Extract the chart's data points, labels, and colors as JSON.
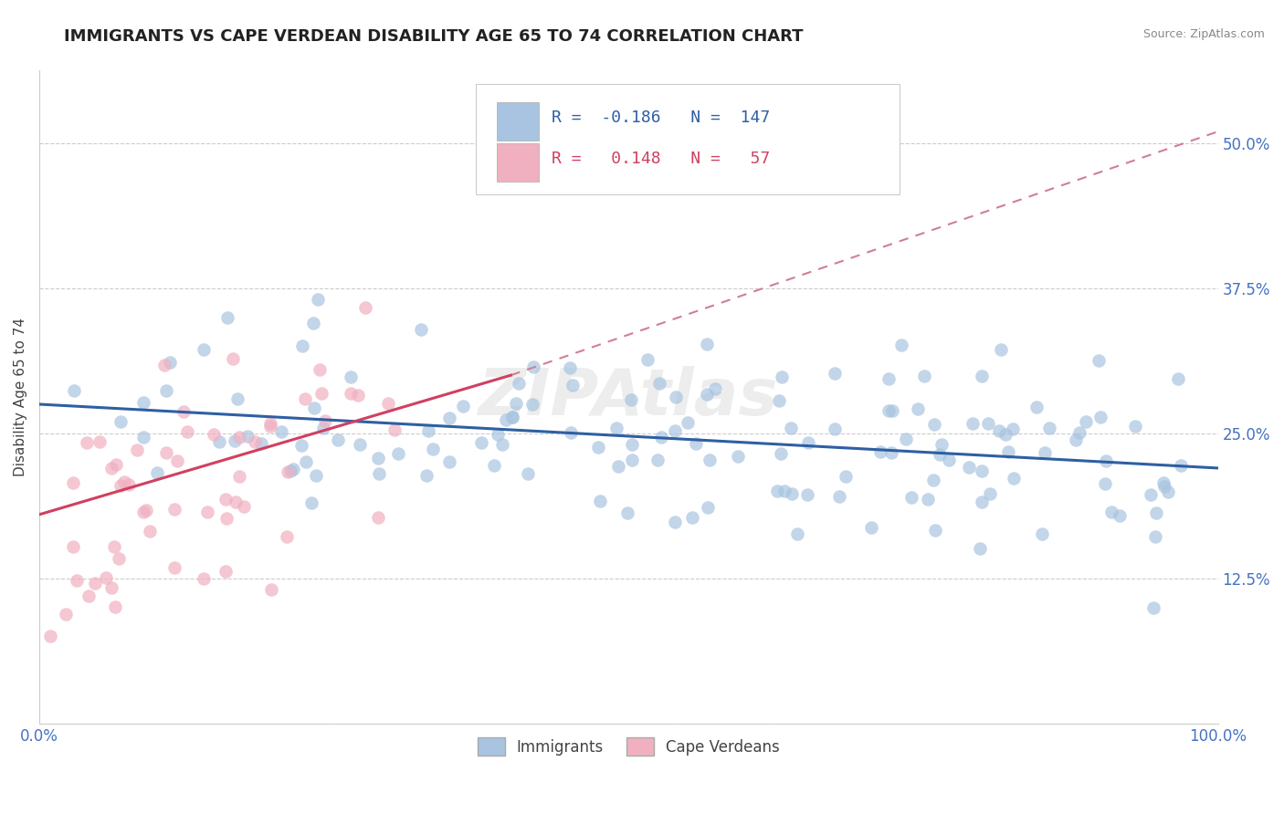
{
  "title": "IMMIGRANTS VS CAPE VERDEAN DISABILITY AGE 65 TO 74 CORRELATION CHART",
  "source_text": "Source: ZipAtlas.com",
  "ylabel": "Disability Age 65 to 74",
  "xlim": [
    0,
    100
  ],
  "ylim": [
    0,
    56.25
  ],
  "ytick_vals": [
    0,
    12.5,
    25.0,
    37.5,
    50.0
  ],
  "right_ytick_labels": [
    "",
    "12.5%",
    "25.0%",
    "37.5%",
    "50.0%"
  ],
  "xtick_vals": [
    0,
    100
  ],
  "xtick_labels": [
    "0.0%",
    "100.0%"
  ],
  "immigrants_color": "#a8c4e0",
  "capeverdean_color": "#f0b0c0",
  "trend_immigrants_color": "#2e5fa3",
  "trend_capeverdean_color": "#d04060",
  "dashed_extension_color": "#d08090",
  "watermark_text": "ZIPAtlas",
  "title_color": "#222222",
  "title_fontsize": 13,
  "axis_label_color": "#444444",
  "tick_label_color": "#4472c4",
  "background_color": "#ffffff",
  "grid_color": "#cccccc",
  "imm_trend_y0": 27.5,
  "imm_trend_y1": 22.0,
  "cv_trend_x0": 0,
  "cv_trend_x1": 40,
  "cv_trend_y0": 18.0,
  "cv_trend_y1": 30.0,
  "cv_dash_x0": 40,
  "cv_dash_x1": 100,
  "cv_dash_y0": 30.0,
  "cv_dash_y1": 51.0,
  "legend_R_imm": "R = ",
  "legend_R_imm_val": "-0.186",
  "legend_N_imm": "N = ",
  "legend_N_imm_val": "147",
  "legend_R_cv": "R = ",
  "legend_R_cv_val": "0.148",
  "legend_N_cv": "N = ",
  "legend_N_cv_val": "57"
}
